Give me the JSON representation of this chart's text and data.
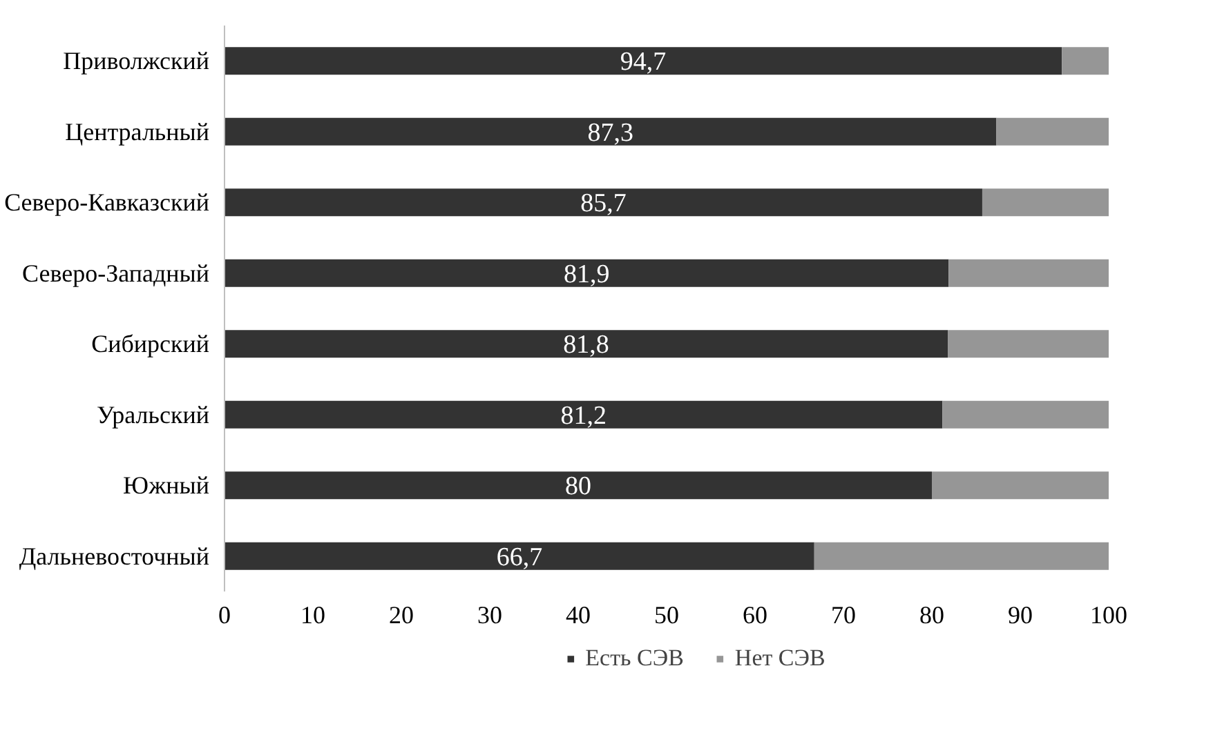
{
  "chart_data": {
    "type": "bar",
    "orientation": "horizontal",
    "stacked": true,
    "categories": [
      "Приволжский",
      "Центральный",
      "Северо-Кавказский",
      "Северо-Западный",
      "Сибирский",
      "Уральский",
      "Южный",
      "Дальневосточный"
    ],
    "series": [
      {
        "name": "Есть СЭВ",
        "color": "#333333",
        "values": [
          94.7,
          87.3,
          85.7,
          81.9,
          81.8,
          81.2,
          80,
          66.7
        ],
        "value_labels": [
          "94,7",
          "87,3",
          "85,7",
          "81,9",
          "81,8",
          "81,2",
          "80",
          "66,7"
        ]
      },
      {
        "name": "Нет СЭВ",
        "color": "#969696",
        "values": [
          5.3,
          12.7,
          14.3,
          18.1,
          18.2,
          18.8,
          20,
          33.3
        ]
      }
    ],
    "xlim": [
      0,
      100
    ],
    "xticks": [
      0,
      10,
      20,
      30,
      40,
      50,
      60,
      70,
      80,
      90,
      100
    ],
    "grid": false,
    "legend": "bottom"
  }
}
